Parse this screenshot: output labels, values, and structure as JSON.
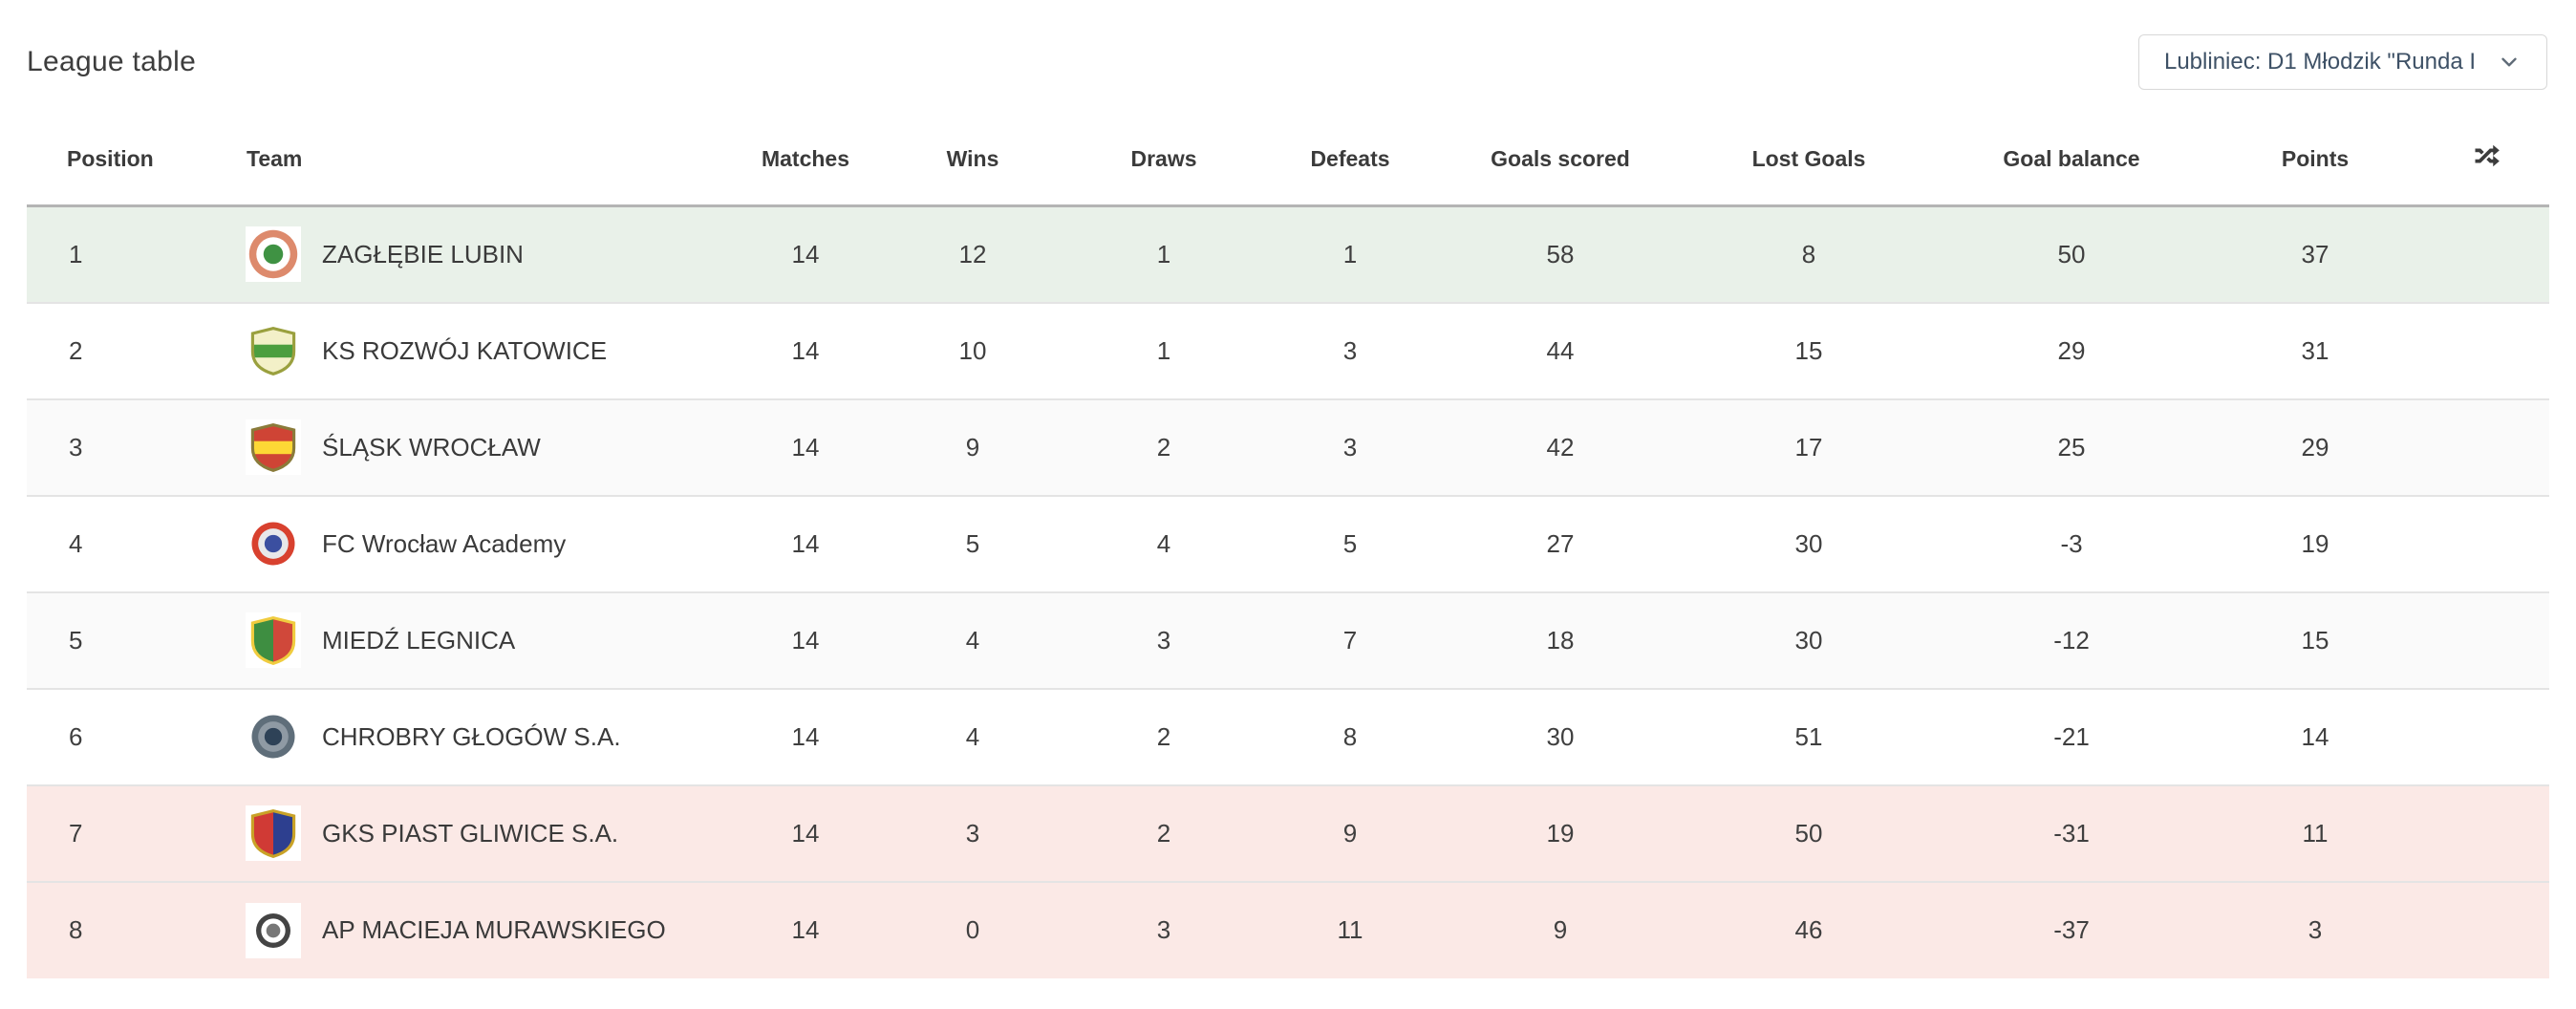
{
  "page": {
    "title": "League table"
  },
  "season_selector": {
    "value": "Lubliniec: D1 Młodzik \"Runda I",
    "icon": "chevron-down-icon"
  },
  "table": {
    "columns": [
      {
        "key": "position",
        "label": "Position",
        "align": "left"
      },
      {
        "key": "team",
        "label": "Team",
        "align": "left"
      },
      {
        "key": "matches",
        "label": "Matches",
        "align": "center"
      },
      {
        "key": "wins",
        "label": "Wins",
        "align": "center"
      },
      {
        "key": "draws",
        "label": "Draws",
        "align": "center"
      },
      {
        "key": "defeats",
        "label": "Defeats",
        "align": "center"
      },
      {
        "key": "goals_scored",
        "label": "Goals scored",
        "align": "center"
      },
      {
        "key": "lost_goals",
        "label": "Lost Goals",
        "align": "center"
      },
      {
        "key": "goal_balance",
        "label": "Goal balance",
        "align": "center"
      },
      {
        "key": "points",
        "label": "Points",
        "align": "center"
      },
      {
        "key": "shuffle",
        "label": "",
        "align": "center",
        "icon": "shuffle-icon"
      }
    ],
    "rows": [
      {
        "position": 1,
        "team": "ZAGŁĘBIE LUBIN",
        "matches": 14,
        "wins": 12,
        "draws": 1,
        "defeats": 1,
        "goals_scored": 58,
        "lost_goals": 8,
        "goal_balance": 50,
        "points": 37,
        "highlight": "promotion",
        "crest": {
          "shape": "circle",
          "size": 56,
          "colors": [
            "#dd8a6c",
            "#ffffff",
            "#3f9243"
          ]
        }
      },
      {
        "position": 2,
        "team": "KS ROZWÓJ KATOWICE",
        "matches": 14,
        "wins": 10,
        "draws": 1,
        "defeats": 3,
        "goals_scored": 44,
        "lost_goals": 15,
        "goal_balance": 29,
        "points": 31,
        "highlight": null,
        "crest": {
          "shape": "shield-band",
          "size": 54,
          "colors": [
            "#f3f0c8",
            "#4c9e3f",
            "#9aa03e"
          ]
        }
      },
      {
        "position": 3,
        "team": "ŚLĄSK WROCŁAW",
        "matches": 14,
        "wins": 9,
        "draws": 2,
        "defeats": 3,
        "goals_scored": 42,
        "lost_goals": 17,
        "goal_balance": 25,
        "points": 29,
        "highlight": null,
        "crest": {
          "shape": "shield-band",
          "size": 54,
          "colors": [
            "#cf4435",
            "#fdd835",
            "#8a7b3a"
          ]
        }
      },
      {
        "position": 4,
        "team": "FC Wrocław Academy",
        "matches": 14,
        "wins": 5,
        "draws": 4,
        "defeats": 5,
        "goals_scored": 27,
        "lost_goals": 30,
        "goal_balance": -3,
        "points": 19,
        "highlight": null,
        "crest": {
          "shape": "circle",
          "size": 50,
          "colors": [
            "#d8412f",
            "#e8e8ea",
            "#3b4fa0"
          ]
        }
      },
      {
        "position": 5,
        "team": "MIEDŹ LEGNICA",
        "matches": 14,
        "wins": 4,
        "draws": 3,
        "defeats": 7,
        "goals_scored": 18,
        "lost_goals": 30,
        "goal_balance": -12,
        "points": 15,
        "highlight": null,
        "crest": {
          "shape": "shield-split",
          "size": 54,
          "colors": [
            "#3e8e41",
            "#d0483a",
            "#f0cc3f"
          ]
        }
      },
      {
        "position": 6,
        "team": "CHROBRY GŁOGÓW S.A.",
        "matches": 14,
        "wins": 4,
        "draws": 2,
        "defeats": 8,
        "goals_scored": 30,
        "lost_goals": 51,
        "goal_balance": -21,
        "points": 14,
        "highlight": null,
        "crest": {
          "shape": "circle",
          "size": 50,
          "colors": [
            "#5f6e7a",
            "#8f9aa4",
            "#2e4257"
          ]
        }
      },
      {
        "position": 7,
        "team": "GKS PIAST GLIWICE S.A.",
        "matches": 14,
        "wins": 3,
        "draws": 2,
        "defeats": 9,
        "goals_scored": 19,
        "lost_goals": 50,
        "goal_balance": -31,
        "points": 11,
        "highlight": "relegation",
        "crest": {
          "shape": "shield-split",
          "size": 54,
          "colors": [
            "#d03a35",
            "#2d3f8f",
            "#c9a227"
          ]
        }
      },
      {
        "position": 8,
        "team": "AP MACIEJA MURAWSKIEGO",
        "matches": 14,
        "wins": 0,
        "draws": 3,
        "defeats": 11,
        "goals_scored": 9,
        "lost_goals": 46,
        "goal_balance": -37,
        "points": 3,
        "highlight": "relegation",
        "crest": {
          "shape": "circle",
          "size": 40,
          "colors": [
            "#444444",
            "#ffffff",
            "#777777"
          ]
        }
      }
    ],
    "highlight_colors": {
      "promotion": "#e9f1e9",
      "relegation": "#fbe9e6",
      "zebra": "#fafafa"
    }
  }
}
